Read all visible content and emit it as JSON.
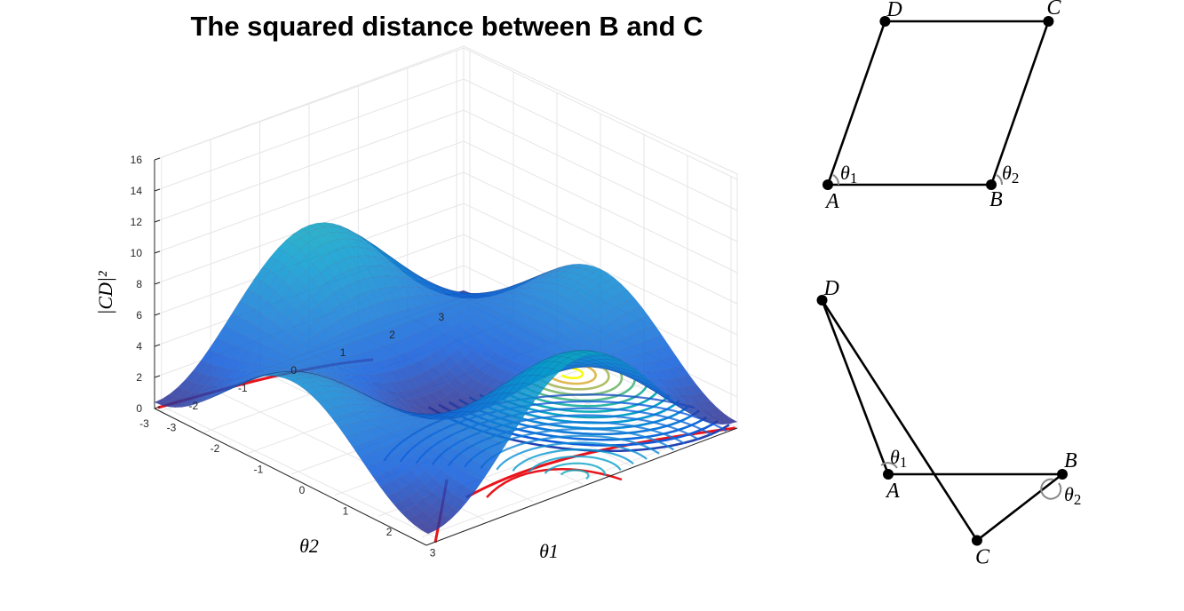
{
  "chart_data": {
    "type": "surface3d",
    "title": "The squared distance between B and C",
    "xlabel": "θ1",
    "ylabel": "θ2",
    "zlabel": "|CD|²",
    "x_ticks": [
      -3,
      -2,
      -1,
      0,
      1,
      2,
      3
    ],
    "y_ticks": [
      -3,
      -2,
      -1,
      0,
      1,
      2,
      3
    ],
    "z_ticks": [
      0,
      2,
      4,
      6,
      8,
      10,
      12,
      14,
      16
    ],
    "xlim": [
      -3.14159,
      3.14159
    ],
    "ylim": [
      -3.14159,
      3.14159
    ],
    "zlim": [
      0,
      16
    ],
    "grid": true,
    "colormap": "parula",
    "contour_line_color": "#e8141b",
    "surface_peaks": [
      {
        "theta1": 0.0,
        "theta2": 3.14159,
        "value": 11.5
      },
      {
        "theta1": 3.14159,
        "theta2": 0.0,
        "value": 16.0
      }
    ]
  },
  "diagrams": [
    {
      "name": "parallelogram",
      "points": [
        {
          "label": "D",
          "x": 0.35,
          "y": 1.0
        },
        {
          "label": "C",
          "x": 1.35,
          "y": 1.0
        },
        {
          "label": "A",
          "x": 0.0,
          "y": 0.0
        },
        {
          "label": "B",
          "x": 1.0,
          "y": 0.0
        }
      ],
      "angles": [
        "θ1",
        "θ2"
      ]
    },
    {
      "name": "crossed",
      "points": [
        {
          "label": "D",
          "x": -0.38,
          "y": 1.0
        },
        {
          "label": "A",
          "x": 0.0,
          "y": 0.0
        },
        {
          "label": "B",
          "x": 1.0,
          "y": 0.0
        },
        {
          "label": "C",
          "x": 0.51,
          "y": -0.38
        }
      ],
      "angles": [
        "θ1",
        "θ2"
      ]
    }
  ]
}
